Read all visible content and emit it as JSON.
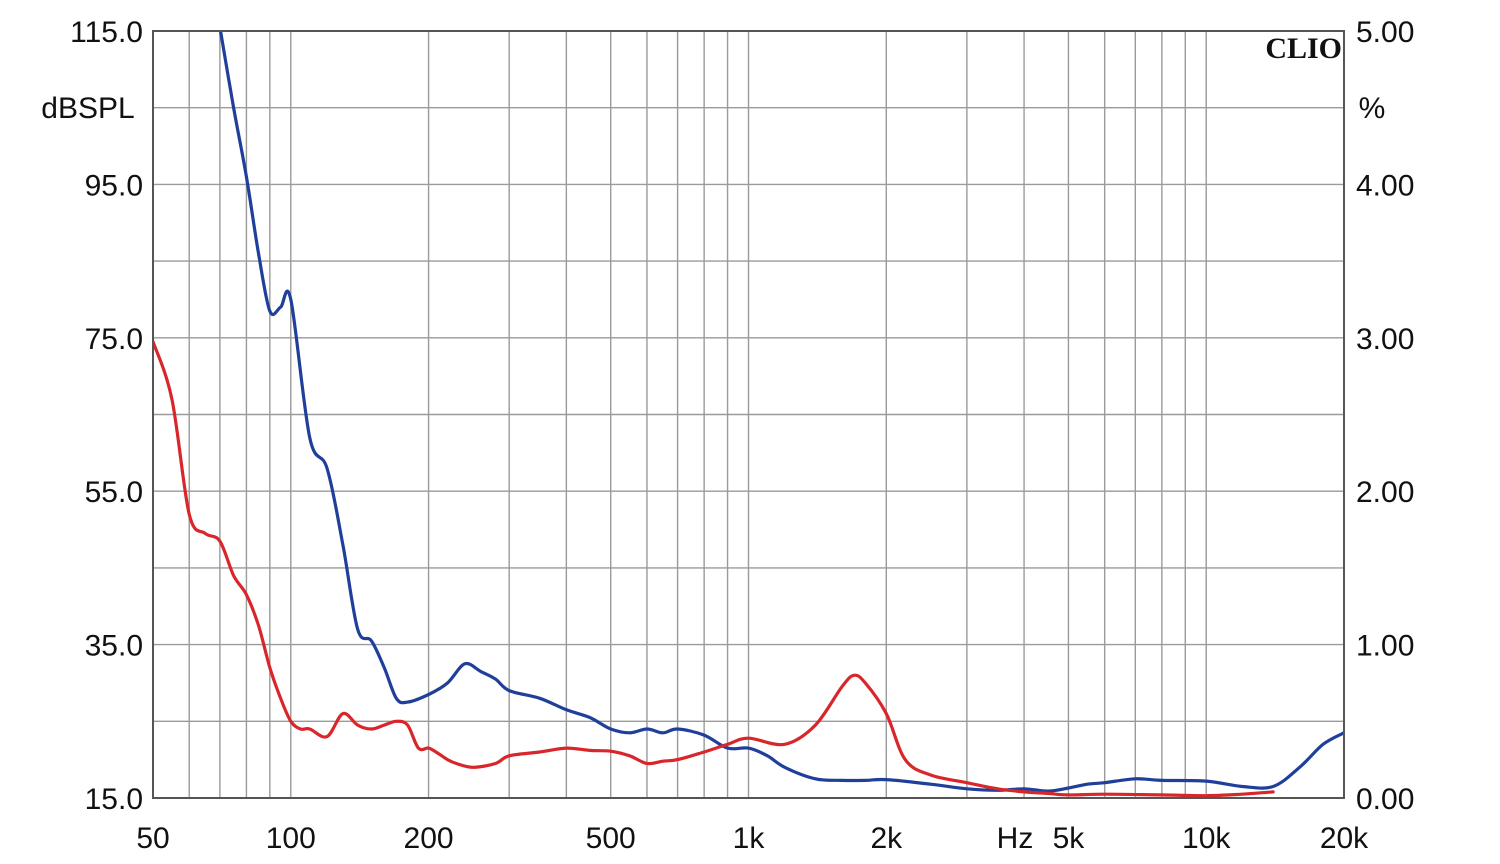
{
  "chart_data": {
    "type": "line",
    "x_scale": "log",
    "x_unit": "Hz",
    "xlim": [
      50,
      20000
    ],
    "x_ticks": [
      {
        "value": 50,
        "label": "50"
      },
      {
        "value": 100,
        "label": "100"
      },
      {
        "value": 200,
        "label": "200"
      },
      {
        "value": 500,
        "label": "500"
      },
      {
        "value": 1000,
        "label": "1k"
      },
      {
        "value": 2000,
        "label": "2k"
      },
      {
        "value": 5000,
        "label": "5k"
      },
      {
        "value": 10000,
        "label": "10k"
      },
      {
        "value": 20000,
        "label": "20k"
      }
    ],
    "y_left": {
      "unit": "dBSPL",
      "range": [
        15,
        115
      ],
      "ticks": [
        "115.0",
        "95.0",
        "75.0",
        "55.0",
        "35.0",
        "15.0"
      ],
      "tick_values": [
        115,
        95,
        75,
        55,
        35,
        15
      ]
    },
    "y_right": {
      "unit": "%",
      "range": [
        0,
        5
      ],
      "ticks": [
        "5.00",
        "4.00",
        "3.00",
        "2.00",
        "1.00",
        "0.00"
      ],
      "tick_values": [
        5,
        4,
        3,
        2,
        1,
        0
      ]
    },
    "grid": true,
    "brand": "CLIO",
    "series": [
      {
        "color": "#1f3f9a",
        "axis": "left",
        "x": [
          70,
          75,
          80,
          85,
          90,
          95,
          100,
          110,
          120,
          130,
          140,
          150,
          160,
          170,
          180,
          200,
          220,
          240,
          260,
          280,
          300,
          350,
          400,
          450,
          500,
          550,
          600,
          650,
          700,
          800,
          900,
          1000,
          1100,
          1200,
          1400,
          1600,
          1800,
          2000,
          2500,
          3000,
          3500,
          4000,
          4500,
          5000,
          5500,
          6000,
          7000,
          8000,
          10000,
          12000,
          14000,
          16000,
          18000,
          20000
        ],
        "values": [
          115.5,
          105,
          96,
          86,
          78.5,
          79,
          80,
          62,
          58,
          48,
          37,
          35.5,
          32,
          28,
          27.5,
          28.5,
          30,
          32.5,
          31.5,
          30.5,
          29,
          28,
          26.5,
          25.5,
          24,
          23.5,
          24,
          23.5,
          24,
          23.2,
          21.5,
          21.5,
          20.5,
          19,
          17.5,
          17.3,
          17.3,
          17.4,
          16.8,
          16.2,
          16,
          16.2,
          15.9,
          16.3,
          16.8,
          17,
          17.5,
          17.3,
          17.2,
          16.5,
          16.5,
          19,
          22,
          23.5
        ]
      },
      {
        "color": "#d9262b",
        "axis": "left",
        "x": [
          50,
          55,
          60,
          65,
          70,
          75,
          80,
          85,
          90,
          95,
          100,
          105,
          110,
          120,
          130,
          140,
          150,
          160,
          170,
          180,
          190,
          200,
          210,
          220,
          230,
          250,
          280,
          300,
          350,
          400,
          450,
          500,
          550,
          600,
          650,
          700,
          800,
          900,
          1000,
          1200,
          1400,
          1600,
          1700,
          1800,
          2000,
          2200,
          2500,
          3000,
          3500,
          4000,
          4500,
          5000,
          6000,
          8000,
          10000,
          12000,
          14000
        ],
        "values": [
          74.5,
          67,
          52,
          49.5,
          48.5,
          44,
          41.5,
          37.5,
          32,
          28,
          25,
          24,
          24,
          23,
          26,
          24.5,
          24,
          24.5,
          25,
          24.5,
          21.5,
          21.5,
          20.8,
          20,
          19.5,
          19,
          19.5,
          20.5,
          21,
          21.5,
          21.2,
          21.1,
          20.5,
          19.5,
          19.8,
          20,
          21,
          22,
          22.8,
          22,
          24.5,
          29.5,
          31,
          30,
          26,
          20,
          18,
          17,
          16.2,
          15.8,
          15.6,
          15.4,
          15.5,
          15.4,
          15.3,
          15.5,
          15.8
        ]
      }
    ]
  }
}
